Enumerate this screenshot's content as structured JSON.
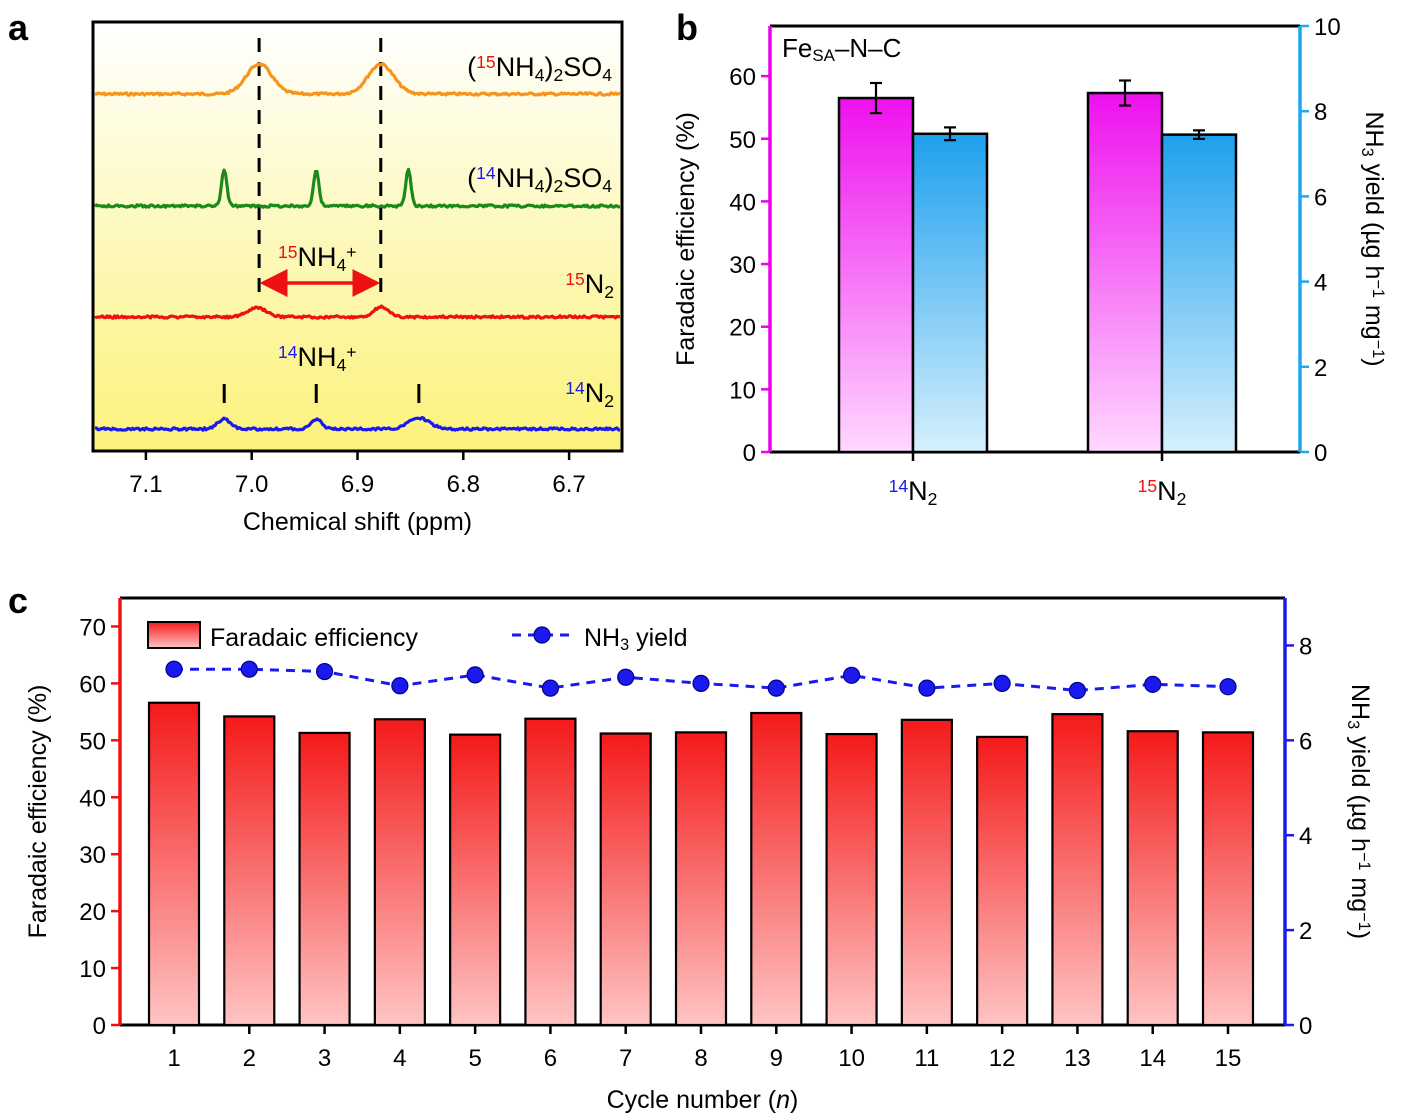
{
  "chart_data": [
    {
      "panel": "a",
      "type": "line",
      "title": "",
      "xlabel": "Chemical shift (ppm)",
      "xlim": [
        7.15,
        6.65
      ],
      "xticks": [
        "7.1",
        "7.0",
        "6.9",
        "6.8",
        "6.7"
      ],
      "xtick_values": [
        7.1,
        7.0,
        6.9,
        6.8,
        6.7
      ],
      "colors": {
        "orange": "#f7941d",
        "green": "#1a8a1a",
        "red": "#ee1111",
        "blue": "#1a1aee",
        "black": "#000000"
      },
      "series": [
        {
          "name": "(15NH4)2SO4",
          "label_parts": [
            "(",
            "15",
            "NH",
            "4",
            ")",
            "2",
            "SO",
            "4"
          ],
          "color": "#f7941d",
          "peaks": [
            {
              "x": 6.993,
              "h": 30,
              "w": 0.012
            },
            {
              "x": 6.878,
              "h": 30,
              "w": 0.012
            }
          ]
        },
        {
          "name": "(14NH4)2SO4",
          "label_parts": [
            "(",
            "14",
            "NH",
            "4",
            ")",
            "2",
            "SO",
            "4"
          ],
          "color": "#1a8a1a",
          "peaks": [
            {
              "x": 7.026,
              "h": 36,
              "w": 0.0025
            },
            {
              "x": 6.939,
              "h": 36,
              "w": 0.0025
            },
            {
              "x": 6.852,
              "h": 36,
              "w": 0.0025
            }
          ]
        },
        {
          "name": "15N2",
          "label_parts": [
            "15",
            "N",
            "2"
          ],
          "color": "#ee1111",
          "peaks": [
            {
              "x": 6.995,
              "h": 9,
              "w": 0.009
            },
            {
              "x": 6.878,
              "h": 10,
              "w": 0.007
            }
          ]
        },
        {
          "name": "14N2",
          "label_parts": [
            "14",
            "N",
            "2"
          ],
          "color": "#1a1aee",
          "peaks": [
            {
              "x": 7.026,
              "h": 10,
              "w": 0.006
            },
            {
              "x": 6.939,
              "h": 10,
              "w": 0.005
            },
            {
              "x": 6.842,
              "h": 11,
              "w": 0.01
            }
          ]
        }
      ],
      "annotations": {
        "nh4_15": [
          "15",
          "NH",
          "4",
          "+"
        ],
        "nh4_14": [
          "14",
          "NH",
          "4",
          "+"
        ]
      }
    },
    {
      "panel": "b",
      "type": "bar",
      "title": "Fe_SA–N–C",
      "title_parts": [
        "Fe",
        "SA",
        "–N–C"
      ],
      "categories": [
        "14N2",
        "15N2"
      ],
      "category_parts": [
        [
          "14",
          "N",
          "2"
        ],
        [
          "15",
          "N",
          "2"
        ]
      ],
      "ylabel_left": "Faradaic efficiency (%)",
      "ylabel_right_parts": [
        "NH",
        "3",
        " yield (µg h",
        "−1",
        " mg",
        "−1",
        ")"
      ],
      "ylim_left": [
        0,
        68
      ],
      "ylim_right": [
        0,
        10
      ],
      "yticks_left": [
        "0",
        "10",
        "20",
        "30",
        "40",
        "50",
        "60"
      ],
      "yticks_right": [
        "0",
        "2",
        "4",
        "6",
        "8",
        "10"
      ],
      "colors": {
        "left_axis": "#ee00ee",
        "right_axis": "#1ea7f0"
      },
      "series": [
        {
          "name": "Faradaic efficiency",
          "axis": "left",
          "values": [
            56.5,
            57.3
          ],
          "errors": [
            2.4,
            2.0
          ]
        },
        {
          "name": "NH3 yield",
          "axis": "right",
          "values": [
            7.47,
            7.45
          ],
          "errors": [
            0.15,
            0.1
          ]
        }
      ]
    },
    {
      "panel": "c",
      "type": "bar",
      "xlabel_parts": [
        "Cycle number (",
        "n",
        ")"
      ],
      "ylabel_left": "Faradaic efficiency (%)",
      "ylabel_right_parts": [
        "NH",
        "3",
        " yield (µg h",
        "−1",
        " mg",
        "−1",
        ")"
      ],
      "categories": [
        "1",
        "2",
        "3",
        "4",
        "5",
        "6",
        "7",
        "8",
        "9",
        "10",
        "11",
        "12",
        "13",
        "14",
        "15"
      ],
      "ylim_left": [
        0,
        75
      ],
      "ylim_right": [
        0,
        9
      ],
      "yticks_left": [
        "0",
        "10",
        "20",
        "30",
        "40",
        "50",
        "60",
        "70"
      ],
      "yticks_right": [
        "0",
        "2",
        "4",
        "6",
        "8"
      ],
      "colors": {
        "left_axis": "#ee1111",
        "right_axis": "#1a1aee"
      },
      "legend": {
        "position": "top-left",
        "bar_label": "Faradaic efficiency",
        "line_label_parts": [
          "NH",
          "3",
          " yield"
        ]
      },
      "series": [
        {
          "name": "Faradaic efficiency",
          "axis": "left",
          "type": "bar",
          "values": [
            56.6,
            54.2,
            51.3,
            53.7,
            51.0,
            53.8,
            51.2,
            51.4,
            54.8,
            51.1,
            53.6,
            50.6,
            54.6,
            51.6,
            51.4
          ]
        },
        {
          "name": "NH3 yield",
          "axis": "right",
          "type": "line",
          "values": [
            7.5,
            7.5,
            7.45,
            7.15,
            7.38,
            7.1,
            7.33,
            7.2,
            7.1,
            7.37,
            7.1,
            7.2,
            7.05,
            7.18,
            7.13
          ]
        }
      ]
    }
  ],
  "panels": [
    "a",
    "b",
    "c"
  ]
}
